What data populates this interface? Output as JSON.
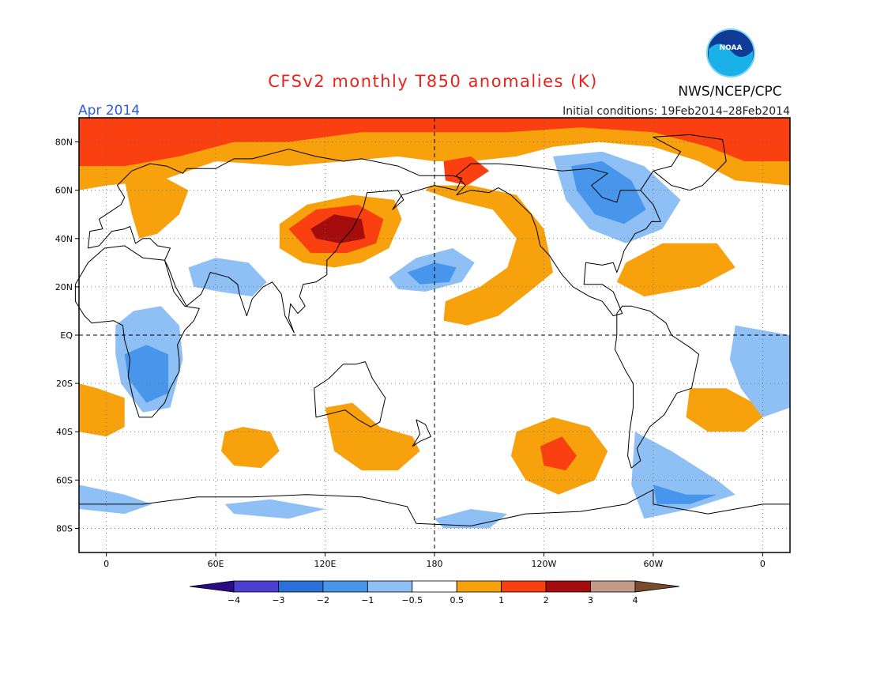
{
  "title": "CFSv2 monthly T850 anomalies (K)",
  "month_label": "Apr 2014",
  "agency": "NWS/NCEP/CPC",
  "logo_text": "NOAA",
  "initial_conditions": "Initial conditions: 19Feb2014–28Feb2014",
  "colors": {
    "title": "#e8231b",
    "month": "#2e5bd6",
    "land": "#000000",
    "frame": "#000000"
  },
  "map": {
    "projection": "equirectangular",
    "lon_range": [
      -15,
      375
    ],
    "lat_range": [
      -90,
      90
    ],
    "lat_tick_labels": [
      "80N",
      "60N",
      "40N",
      "20N",
      "EQ",
      "20S",
      "40S",
      "60S",
      "80S"
    ],
    "lon_tick_labels": [
      "0",
      "60E",
      "120E",
      "180",
      "120W",
      "60W",
      "0"
    ],
    "dashed_reference_lines": [
      "EQ",
      "180"
    ],
    "anomaly_regions": [
      {
        "name": "arctic-warm-band",
        "level": 1,
        "points": [
          [
            -15,
            90
          ],
          [
            375,
            90
          ],
          [
            375,
            62
          ],
          [
            345,
            64
          ],
          [
            325,
            72
          ],
          [
            300,
            78
          ],
          [
            270,
            80
          ],
          [
            245,
            78
          ],
          [
            225,
            74
          ],
          [
            200,
            72
          ],
          [
            180,
            72
          ],
          [
            160,
            74
          ],
          [
            130,
            72
          ],
          [
            100,
            70
          ],
          [
            60,
            72
          ],
          [
            30,
            64
          ],
          [
            0,
            62
          ],
          [
            -15,
            60
          ]
        ]
      },
      {
        "name": "arctic-warm-core",
        "level": 2,
        "points": [
          [
            -15,
            90
          ],
          [
            375,
            90
          ],
          [
            375,
            72
          ],
          [
            350,
            72
          ],
          [
            330,
            78
          ],
          [
            300,
            84
          ],
          [
            260,
            86
          ],
          [
            220,
            84
          ],
          [
            180,
            84
          ],
          [
            140,
            84
          ],
          [
            100,
            80
          ],
          [
            70,
            80
          ],
          [
            40,
            74
          ],
          [
            10,
            70
          ],
          [
            -15,
            70
          ]
        ]
      },
      {
        "name": "europe-warm",
        "level": 1,
        "points": [
          [
            10,
            64
          ],
          [
            30,
            66
          ],
          [
            45,
            60
          ],
          [
            40,
            50
          ],
          [
            28,
            42
          ],
          [
            18,
            40
          ],
          [
            14,
            50
          ]
        ]
      },
      {
        "name": "east-asia-warm",
        "level": 1,
        "points": [
          [
            95,
            46
          ],
          [
            110,
            54
          ],
          [
            135,
            58
          ],
          [
            158,
            56
          ],
          [
            162,
            48
          ],
          [
            155,
            36
          ],
          [
            140,
            30
          ],
          [
            125,
            28
          ],
          [
            108,
            30
          ],
          [
            95,
            36
          ]
        ]
      },
      {
        "name": "east-asia-warm-core",
        "level": 2,
        "points": [
          [
            100,
            44
          ],
          [
            115,
            52
          ],
          [
            138,
            54
          ],
          [
            152,
            48
          ],
          [
            148,
            38
          ],
          [
            132,
            34
          ],
          [
            112,
            34
          ]
        ]
      },
      {
        "name": "east-asia-warm-peak",
        "level": 3,
        "points": [
          [
            112,
            44
          ],
          [
            125,
            50
          ],
          [
            140,
            48
          ],
          [
            142,
            40
          ],
          [
            128,
            38
          ],
          [
            115,
            40
          ]
        ]
      },
      {
        "name": "north-pacific-cool",
        "level": -1,
        "points": [
          [
            155,
            24
          ],
          [
            170,
            32
          ],
          [
            190,
            36
          ],
          [
            202,
            30
          ],
          [
            195,
            22
          ],
          [
            175,
            18
          ],
          [
            160,
            19
          ]
        ]
      },
      {
        "name": "north-pacific-cool-core",
        "level": -2,
        "points": [
          [
            165,
            26
          ],
          [
            180,
            30
          ],
          [
            192,
            28
          ],
          [
            188,
            22
          ],
          [
            172,
            21
          ]
        ]
      },
      {
        "name": "east-pacific-warm",
        "level": 1,
        "points": [
          [
            178,
            62
          ],
          [
            200,
            62
          ],
          [
            225,
            58
          ],
          [
            240,
            44
          ],
          [
            245,
            26
          ],
          [
            232,
            18
          ],
          [
            215,
            8
          ],
          [
            198,
            4
          ],
          [
            185,
            6
          ],
          [
            186,
            14
          ],
          [
            205,
            20
          ],
          [
            220,
            28
          ],
          [
            225,
            40
          ],
          [
            212,
            52
          ],
          [
            190,
            56
          ],
          [
            175,
            60
          ]
        ]
      },
      {
        "name": "alaska-warm-core",
        "level": 2,
        "points": [
          [
            185,
            72
          ],
          [
            200,
            74
          ],
          [
            210,
            68
          ],
          [
            198,
            62
          ],
          [
            186,
            64
          ]
        ]
      },
      {
        "name": "canada-cool",
        "level": -1,
        "points": [
          [
            245,
            74
          ],
          [
            272,
            76
          ],
          [
            295,
            70
          ],
          [
            315,
            56
          ],
          [
            305,
            44
          ],
          [
            285,
            38
          ],
          [
            265,
            44
          ],
          [
            252,
            56
          ]
        ]
      },
      {
        "name": "canada-cool-core",
        "level": -2,
        "points": [
          [
            255,
            70
          ],
          [
            272,
            72
          ],
          [
            288,
            64
          ],
          [
            296,
            52
          ],
          [
            284,
            46
          ],
          [
            268,
            50
          ],
          [
            258,
            60
          ]
        ]
      },
      {
        "name": "north-atlantic-warm",
        "level": 1,
        "points": [
          [
            285,
            30
          ],
          [
            305,
            38
          ],
          [
            335,
            38
          ],
          [
            345,
            28
          ],
          [
            325,
            20
          ],
          [
            295,
            16
          ],
          [
            280,
            22
          ]
        ]
      },
      {
        "name": "arabia-india-cool",
        "level": -1,
        "points": [
          [
            45,
            28
          ],
          [
            60,
            32
          ],
          [
            78,
            30
          ],
          [
            88,
            22
          ],
          [
            80,
            16
          ],
          [
            62,
            18
          ],
          [
            48,
            20
          ]
        ]
      },
      {
        "name": "africa-cool",
        "level": -1,
        "points": [
          [
            5,
            4
          ],
          [
            15,
            10
          ],
          [
            30,
            12
          ],
          [
            40,
            4
          ],
          [
            42,
            -10
          ],
          [
            35,
            -30
          ],
          [
            20,
            -32
          ],
          [
            8,
            -20
          ],
          [
            5,
            -8
          ]
        ]
      },
      {
        "name": "africa-cool-core",
        "level": -2,
        "points": [
          [
            10,
            -8
          ],
          [
            22,
            -4
          ],
          [
            34,
            -8
          ],
          [
            34,
            -24
          ],
          [
            22,
            -28
          ],
          [
            12,
            -18
          ]
        ]
      },
      {
        "name": "south-atlantic-warm",
        "level": 1,
        "points": [
          [
            -15,
            -20
          ],
          [
            -5,
            -22
          ],
          [
            10,
            -26
          ],
          [
            10,
            -38
          ],
          [
            0,
            -42
          ],
          [
            -15,
            -40
          ]
        ]
      },
      {
        "name": "south-atlantic-warm-wrap",
        "level": 1,
        "points": [
          [
            320,
            -22
          ],
          [
            340,
            -22
          ],
          [
            355,
            -28
          ],
          [
            360,
            -34
          ],
          [
            350,
            -40
          ],
          [
            330,
            -40
          ],
          [
            318,
            -34
          ]
        ]
      },
      {
        "name": "south-atlantic-cool-wrap",
        "level": -1,
        "points": [
          [
            345,
            4
          ],
          [
            360,
            2
          ],
          [
            375,
            0
          ],
          [
            375,
            -30
          ],
          [
            360,
            -34
          ],
          [
            348,
            -22
          ],
          [
            342,
            -10
          ]
        ]
      },
      {
        "name": "south-indian-warm",
        "level": 1,
        "points": [
          [
            65,
            -40
          ],
          [
            75,
            -38
          ],
          [
            90,
            -40
          ],
          [
            95,
            -48
          ],
          [
            85,
            -55
          ],
          [
            70,
            -54
          ],
          [
            63,
            -48
          ]
        ]
      },
      {
        "name": "australia-nz-warm",
        "level": 1,
        "points": [
          [
            120,
            -30
          ],
          [
            135,
            -28
          ],
          [
            150,
            -38
          ],
          [
            168,
            -42
          ],
          [
            172,
            -48
          ],
          [
            160,
            -56
          ],
          [
            140,
            -56
          ],
          [
            125,
            -48
          ]
        ]
      },
      {
        "name": "south-pacific-warm",
        "level": 1,
        "points": [
          [
            225,
            -40
          ],
          [
            245,
            -34
          ],
          [
            265,
            -38
          ],
          [
            275,
            -48
          ],
          [
            268,
            -60
          ],
          [
            248,
            -66
          ],
          [
            230,
            -60
          ],
          [
            222,
            -50
          ]
        ]
      },
      {
        "name": "south-pacific-warm-core",
        "level": 2,
        "points": [
          [
            238,
            -46
          ],
          [
            250,
            -42
          ],
          [
            258,
            -50
          ],
          [
            252,
            -56
          ],
          [
            240,
            -54
          ]
        ]
      },
      {
        "name": "drake-passage-cool",
        "level": -1,
        "points": [
          [
            290,
            -40
          ],
          [
            310,
            -48
          ],
          [
            335,
            -60
          ],
          [
            345,
            -66
          ],
          [
            320,
            -72
          ],
          [
            295,
            -76
          ],
          [
            288,
            -62
          ]
        ]
      },
      {
        "name": "drake-passage-cool-core",
        "level": -2,
        "points": [
          [
            300,
            -62
          ],
          [
            318,
            -66
          ],
          [
            335,
            -66
          ],
          [
            320,
            -70
          ],
          [
            302,
            -70
          ]
        ]
      },
      {
        "name": "antarctic-cool-west",
        "level": -1,
        "points": [
          [
            -15,
            -62
          ],
          [
            10,
            -66
          ],
          [
            25,
            -70
          ],
          [
            10,
            -74
          ],
          [
            -15,
            -72
          ]
        ]
      },
      {
        "name": "antarctic-cool-east",
        "level": -1,
        "points": [
          [
            65,
            -70
          ],
          [
            90,
            -68
          ],
          [
            120,
            -72
          ],
          [
            100,
            -76
          ],
          [
            70,
            -74
          ]
        ]
      },
      {
        "name": "ross-sea-cool",
        "level": -1,
        "points": [
          [
            180,
            -76
          ],
          [
            200,
            -72
          ],
          [
            220,
            -74
          ],
          [
            210,
            -80
          ],
          [
            185,
            -80
          ]
        ]
      }
    ]
  },
  "colorbar": {
    "tick_labels": [
      "−4",
      "−3",
      "−2",
      "−1",
      "−0.5",
      "0.5",
      "1",
      "2",
      "3",
      "4"
    ],
    "bins": [
      {
        "level": -5,
        "color": "#2a0c86"
      },
      {
        "level": -4,
        "color": "#4a3fd0"
      },
      {
        "level": -3,
        "color": "#2b6fd8"
      },
      {
        "level": -2,
        "color": "#4796ec"
      },
      {
        "level": -1,
        "color": "#8ec0f5"
      },
      {
        "level": 0,
        "color": "#ffffff"
      },
      {
        "level": 1,
        "color": "#f7a10d"
      },
      {
        "level": 2,
        "color": "#fa4010"
      },
      {
        "level": 3,
        "color": "#a50d0d"
      },
      {
        "level": 4,
        "color": "#c49a86"
      },
      {
        "level": 5,
        "color": "#7a4a2c"
      }
    ]
  }
}
